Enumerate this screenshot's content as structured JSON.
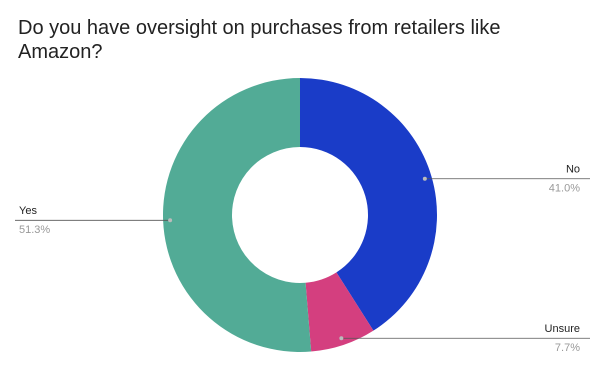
{
  "chart_data": {
    "type": "pie",
    "donut": true,
    "title": "Do you have oversight on purchases from retailers like Amazon?",
    "categories": [
      "No",
      "Unsure",
      "Yes"
    ],
    "values": [
      41.0,
      7.7,
      51.3
    ],
    "value_labels": [
      "41.0%",
      "7.7%",
      "51.3%"
    ],
    "colors": [
      "#1a3cc8",
      "#d43f7f",
      "#52ab96"
    ]
  }
}
